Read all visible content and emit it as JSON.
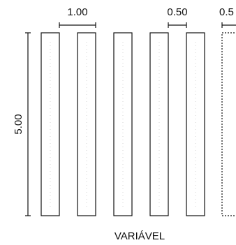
{
  "dimensions": {
    "height_label": "5.00",
    "width_label": "1.00",
    "gap_label": "0.50",
    "gap_label_partial": "0.5"
  },
  "caption": "VARIÁVEL",
  "colors": {
    "line": "#111111",
    "background": "#ffffff"
  }
}
